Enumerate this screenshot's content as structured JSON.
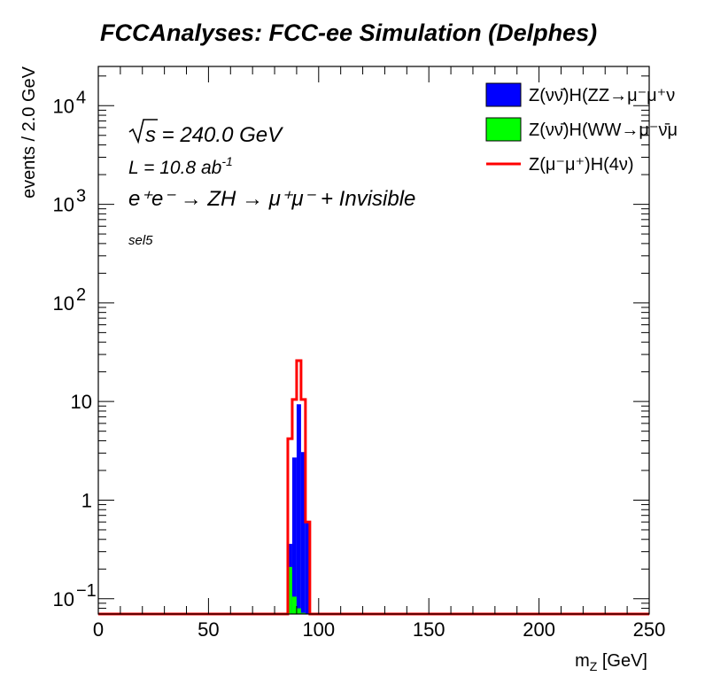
{
  "chart_data": {
    "type": "bar",
    "title": "FCCAnalyses: FCC-ee Simulation (Delphes)",
    "xlabel": "m_Z [GeV]",
    "ylabel": "events / 2.0 GeV",
    "xlim": [
      0,
      250
    ],
    "ylim": [
      0.07,
      25000
    ],
    "yscale": "log",
    "bin_width": 2.0,
    "x_ticks": [
      "0",
      "50",
      "100",
      "150",
      "200",
      "250"
    ],
    "y_ticks": [
      {
        "value": 0.1,
        "base": "10",
        "exp": "−1"
      },
      {
        "value": 1,
        "base": "1",
        "exp": ""
      },
      {
        "value": 10,
        "base": "10",
        "exp": ""
      },
      {
        "value": 100,
        "base": "10",
        "exp": "2"
      },
      {
        "value": 1000,
        "base": "10",
        "exp": "3"
      },
      {
        "value": 10000,
        "base": "10",
        "exp": "4"
      }
    ],
    "annotations": {
      "sqrt_s": "s = 240.0 GeV",
      "lumi": "L = 10.8 ab",
      "lumi_exp": "-1",
      "process": "e⁺e⁻ → ZH → μ⁺μ⁻ + Invisible",
      "selection": "sel5"
    },
    "series": [
      {
        "name": "Z(νν̄)H(ZZ→μ⁻μ⁺ν",
        "style": "stacked-fill",
        "color": "#0000ff",
        "bins": [
          [
            86,
            0.15
          ],
          [
            88,
            2.6
          ],
          [
            90,
            9.3
          ],
          [
            92,
            3.0
          ],
          [
            94,
            0.6
          ]
        ]
      },
      {
        "name": "Z(νν̄)H(WW→μ⁻ν̄μ",
        "style": "stacked-fill",
        "color": "#00ff00",
        "bins": [
          [
            86,
            0.21
          ],
          [
            88,
            0.105
          ],
          [
            90,
            0.08
          ],
          [
            92,
            0.072
          ]
        ]
      },
      {
        "name": "Z(μ⁻μ⁺)H(4ν)",
        "style": "line",
        "color": "#ff0000",
        "bins": [
          [
            86,
            4.2
          ],
          [
            88,
            10.5
          ],
          [
            90,
            26
          ],
          [
            92,
            10.5
          ],
          [
            94,
            0.6
          ]
        ]
      }
    ],
    "legend_position": "top-right",
    "grid": false
  }
}
